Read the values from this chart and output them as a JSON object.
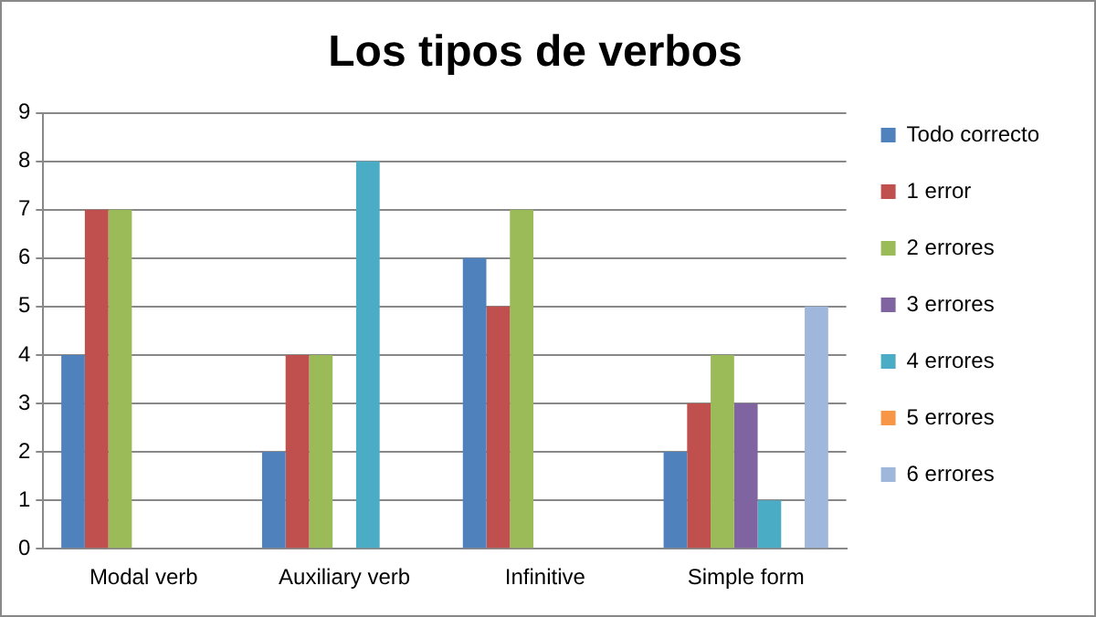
{
  "chart_data": {
    "type": "bar",
    "title": "Los tipos de verbos",
    "categories": [
      "Modal verb",
      "Auxiliary verb",
      "Infinitive",
      "Simple form"
    ],
    "series": [
      {
        "name": "Todo correcto",
        "color": "#4f81bd",
        "values": [
          4,
          2,
          6,
          2
        ]
      },
      {
        "name": "1 error",
        "color": "#c0504d",
        "values": [
          7,
          4,
          5,
          3
        ]
      },
      {
        "name": "2 errores",
        "color": "#9bbb59",
        "values": [
          7,
          4,
          7,
          4
        ]
      },
      {
        "name": "3 errores",
        "color": "#8064a2",
        "values": [
          0,
          0,
          0,
          3
        ]
      },
      {
        "name": "4 errores",
        "color": "#4bacc6",
        "values": [
          0,
          8,
          0,
          1
        ]
      },
      {
        "name": "5 errores",
        "color": "#f79646",
        "values": [
          0,
          0,
          0,
          0
        ]
      },
      {
        "name": "6 errores",
        "color": "#a0b7dc",
        "values": [
          0,
          0,
          0,
          5
        ]
      }
    ],
    "ylim": [
      0,
      9
    ],
    "yticks": [
      0,
      1,
      2,
      3,
      4,
      5,
      6,
      7,
      8,
      9
    ],
    "grid": "y",
    "legend": "right"
  }
}
